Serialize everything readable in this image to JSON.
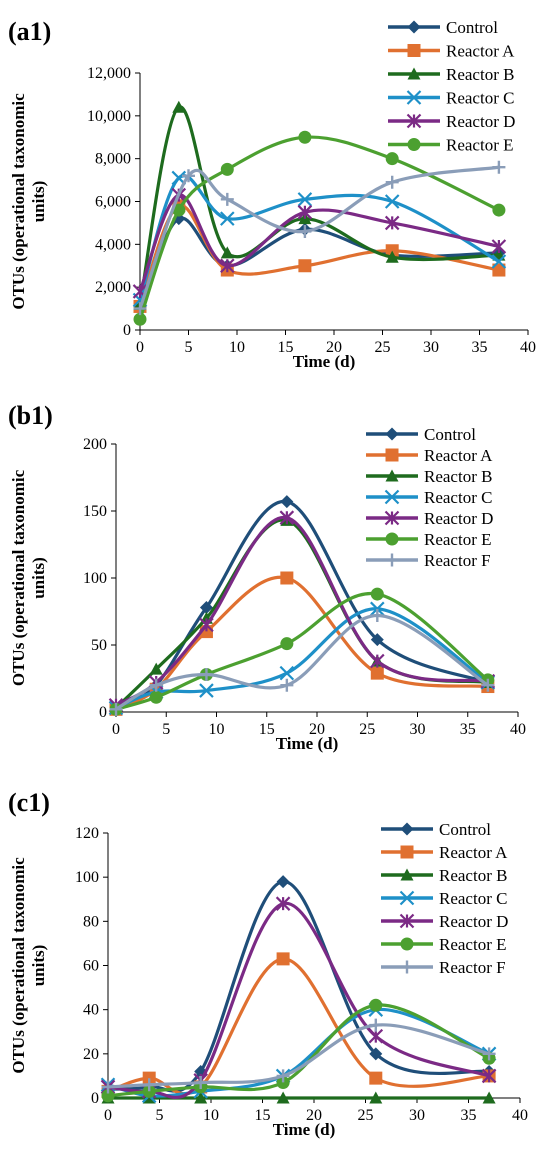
{
  "colors": {
    "Control": "#1F4E79",
    "Reactor A": "#E07030",
    "Reactor B": "#1E6B1E",
    "Reactor C": "#1E90C8",
    "Reactor D": "#7B2A85",
    "Reactor E": "#4CA030",
    "Reactor F": "#8A9DB8"
  },
  "markers": {
    "Control": "diamond",
    "Reactor A": "square",
    "Reactor B": "triangle",
    "Reactor C": "x",
    "Reactor D": "asterisk",
    "Reactor E": "circle",
    "Reactor F": "plus"
  },
  "chart_data": [
    {
      "type": "line",
      "smooth": true,
      "panel_label": "(a1)",
      "xlabel": "Time (d)",
      "ylabel": "OTUs (operational taxonomic units)",
      "xlim": [
        0,
        40
      ],
      "ylim": [
        0,
        12000
      ],
      "xticks": [
        "0",
        "5",
        "10",
        "15",
        "20",
        "25",
        "30",
        "35",
        "40"
      ],
      "yticks": [
        "0",
        "2,000",
        "4,000",
        "6,000",
        "8,000",
        "10,000",
        "12,000"
      ],
      "legend": "top-right",
      "x": [
        0,
        4,
        9,
        17,
        26,
        37
      ],
      "series": [
        {
          "name": "Control",
          "values": [
            1000,
            5200,
            3000,
            4700,
            3500,
            3600
          ]
        },
        {
          "name": "Reactor A",
          "values": [
            1100,
            5800,
            2800,
            3000,
            3700,
            2800
          ]
        },
        {
          "name": "Reactor B",
          "values": [
            1200,
            10400,
            3600,
            5200,
            3400,
            3500
          ]
        },
        {
          "name": "Reactor C",
          "values": [
            1400,
            7100,
            5200,
            6100,
            6000,
            3200
          ]
        },
        {
          "name": "Reactor D",
          "values": [
            1800,
            6300,
            3000,
            5500,
            5000,
            3900
          ]
        },
        {
          "name": "Reactor E",
          "values": [
            500,
            5600,
            7500,
            9000,
            8000,
            5600
          ]
        }
      ],
      "extra_series": [
        {
          "name": "",
          "legend": false,
          "color_key": "Reactor F",
          "marker": "plus",
          "x": [
            0,
            5,
            9,
            17,
            26,
            37
          ],
          "values": [
            1000,
            7200,
            6100,
            4600,
            6900,
            7600
          ]
        }
      ]
    },
    {
      "type": "line",
      "smooth": true,
      "panel_label": "(b1)",
      "xlabel": "Time (d)",
      "ylabel": "OTUs (operational taxonomic units)",
      "xlim": [
        0,
        40
      ],
      "ylim": [
        0,
        200
      ],
      "xticks": [
        "0",
        "5",
        "10",
        "15",
        "20",
        "25",
        "30",
        "35",
        "40"
      ],
      "yticks": [
        "0",
        "50",
        "100",
        "150",
        "200"
      ],
      "legend": "top-right",
      "x": [
        0,
        4,
        9,
        17,
        26,
        37
      ],
      "series": [
        {
          "name": "Control",
          "values": [
            3,
            20,
            78,
            157,
            54,
            22
          ]
        },
        {
          "name": "Reactor A",
          "values": [
            2,
            17,
            60,
            100,
            29,
            19
          ]
        },
        {
          "name": "Reactor B",
          "values": [
            3,
            32,
            70,
            143,
            38,
            22
          ]
        },
        {
          "name": "Reactor C",
          "values": [
            3,
            15,
            16,
            29,
            77,
            22
          ]
        },
        {
          "name": "Reactor D",
          "values": [
            5,
            22,
            65,
            145,
            38,
            23
          ]
        },
        {
          "name": "Reactor E",
          "values": [
            2,
            11,
            28,
            51,
            88,
            24
          ]
        },
        {
          "name": "Reactor F",
          "values": [
            2,
            20,
            28,
            20,
            72,
            20
          ]
        }
      ]
    },
    {
      "type": "line",
      "smooth": true,
      "panel_label": "(c1)",
      "xlabel": "Time (d)",
      "ylabel": "OTUs (operational taxonomic units)",
      "xlim": [
        0,
        40
      ],
      "ylim": [
        0,
        120
      ],
      "xticks": [
        "0",
        "5",
        "10",
        "15",
        "20",
        "25",
        "30",
        "35",
        "40"
      ],
      "yticks": [
        "0",
        "20",
        "40",
        "60",
        "80",
        "100",
        "120"
      ],
      "legend": "top-right",
      "x": [
        0,
        4,
        9,
        17,
        26,
        37
      ],
      "series": [
        {
          "name": "Control",
          "values": [
            4,
            5,
            12,
            98,
            20,
            12
          ]
        },
        {
          "name": "Reactor A",
          "values": [
            3,
            9,
            5,
            63,
            9,
            10
          ]
        },
        {
          "name": "Reactor B",
          "values": [
            0,
            0,
            0,
            0,
            0,
            0
          ]
        },
        {
          "name": "Reactor C",
          "values": [
            6,
            1,
            3,
            10,
            40,
            20
          ]
        },
        {
          "name": "Reactor D",
          "values": [
            5,
            3,
            8,
            88,
            28,
            10
          ]
        },
        {
          "name": "Reactor E",
          "values": [
            1,
            3,
            5,
            7,
            42,
            18
          ]
        },
        {
          "name": "Reactor F",
          "values": [
            5,
            6,
            7,
            10,
            33,
            20
          ]
        }
      ]
    }
  ]
}
